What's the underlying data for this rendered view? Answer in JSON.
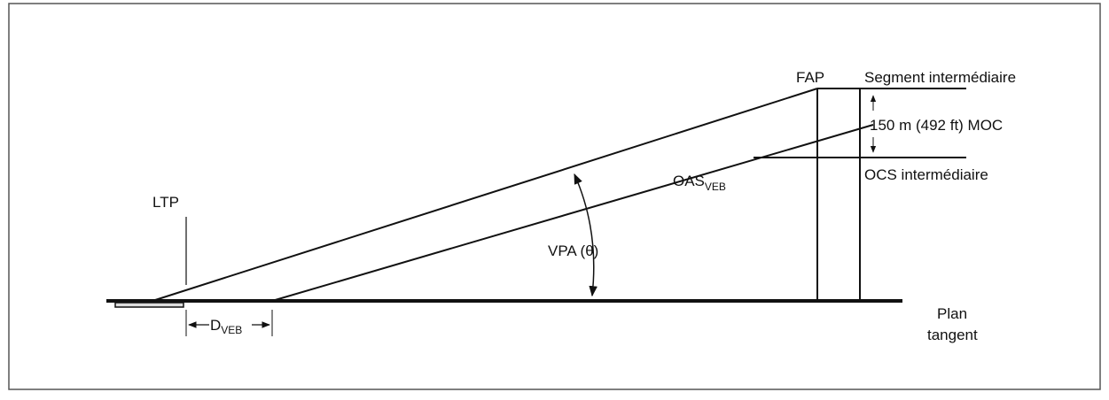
{
  "labels": {
    "ltp": "LTP",
    "fap": "FAP",
    "segment": "Segment intermédiaire",
    "moc": "150 m (492 ft) MOC",
    "ocs": "OCS intermédiaire",
    "oas": {
      "main": "OAS",
      "sub": "VEB"
    },
    "vpa": "VPA (θ)",
    "dveb": {
      "main": "D",
      "sub": "VEB"
    },
    "plan": [
      "Plan",
      "tangent"
    ]
  }
}
